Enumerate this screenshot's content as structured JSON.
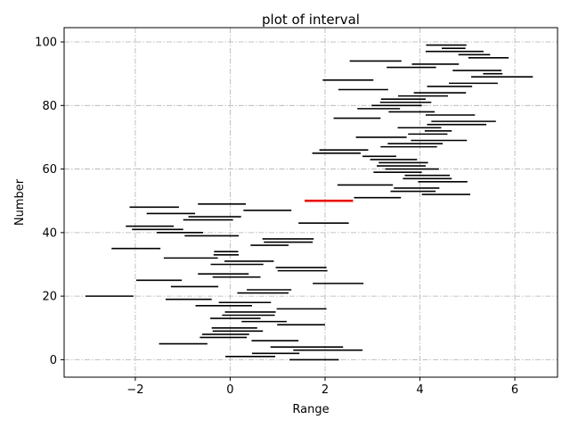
{
  "chart_data": {
    "type": "interval",
    "title": "plot of interval",
    "xlabel": "Range",
    "ylabel": "Number",
    "xlim": [
      -3.5,
      6.9
    ],
    "ylim": [
      -5.5,
      104.5
    ],
    "xticks": [
      -2,
      0,
      2,
      4,
      6
    ],
    "xtick_labels": [
      "−2",
      "0",
      "2",
      "4",
      "6"
    ],
    "yticks": [
      0,
      20,
      40,
      60,
      80,
      100
    ],
    "ytick_labels": [
      "0",
      "20",
      "40",
      "60",
      "80",
      "100"
    ],
    "grid": true,
    "colors": {
      "interval": "#000000",
      "highlight": "#e8140c",
      "grid": "#b0b0b0"
    },
    "highlight_index": 50,
    "intervals": [
      [
        1.25,
        2.29
      ],
      [
        -0.1,
        0.95
      ],
      [
        0.46,
        1.46
      ],
      [
        1.33,
        2.79
      ],
      [
        0.85,
        2.38
      ],
      [
        -1.5,
        -0.48
      ],
      [
        0.45,
        1.44
      ],
      [
        -0.64,
        0.35
      ],
      [
        -0.59,
        0.4
      ],
      [
        -0.37,
        0.69
      ],
      [
        -0.39,
        0.57
      ],
      [
        0.99,
        2.0
      ],
      [
        0.24,
        1.19
      ],
      [
        -0.42,
        0.64
      ],
      [
        -0.17,
        0.94
      ],
      [
        -0.11,
        0.96
      ],
      [
        0.98,
        2.03
      ],
      [
        -0.73,
        0.46
      ],
      [
        -0.24,
        0.86
      ],
      [
        -1.36,
        -0.39
      ],
      [
        -3.05,
        -2.04
      ],
      [
        0.15,
        1.23
      ],
      [
        0.35,
        1.29
      ],
      [
        -1.25,
        -0.25
      ],
      [
        1.74,
        2.81
      ],
      [
        -1.98,
        -1.02
      ],
      [
        -0.37,
        0.64
      ],
      [
        -0.68,
        0.39
      ],
      [
        1.0,
        2.05
      ],
      [
        0.96,
        2.03
      ],
      [
        -0.41,
        0.7
      ],
      [
        -0.12,
        0.92
      ],
      [
        -1.4,
        -0.26
      ],
      [
        -0.35,
        0.18
      ],
      [
        -0.34,
        0.17
      ],
      [
        -2.5,
        -1.47
      ],
      [
        0.43,
        1.23
      ],
      [
        0.71,
        1.74
      ],
      [
        0.68,
        1.76
      ],
      [
        -0.96,
        0.18
      ],
      [
        -1.55,
        -0.57
      ],
      [
        -2.07,
        -0.99
      ],
      [
        -2.2,
        -1.19
      ],
      [
        1.44,
        2.5
      ],
      [
        -0.99,
        0.06
      ],
      [
        -0.88,
        0.23
      ],
      [
        -1.76,
        -0.74
      ],
      [
        0.28,
        1.29
      ],
      [
        -2.12,
        -1.08
      ],
      [
        -0.68,
        0.33
      ],
      [
        1.57,
        2.59
      ],
      [
        2.61,
        3.6
      ],
      [
        4.04,
        5.06
      ],
      [
        3.38,
        4.33
      ],
      [
        3.45,
        4.41
      ],
      [
        2.26,
        3.43
      ],
      [
        3.96,
        5.0
      ],
      [
        3.64,
        4.67
      ],
      [
        3.68,
        4.63
      ],
      [
        3.02,
        4.04
      ],
      [
        3.27,
        4.4
      ],
      [
        3.09,
        4.12
      ],
      [
        3.13,
        4.17
      ],
      [
        2.95,
        3.94
      ],
      [
        2.79,
        3.5
      ],
      [
        1.73,
        2.75
      ],
      [
        1.88,
        2.91
      ],
      [
        3.17,
        4.36
      ],
      [
        3.32,
        4.48
      ],
      [
        3.81,
        4.99
      ],
      [
        2.65,
        3.72
      ],
      [
        3.75,
        4.58
      ],
      [
        4.1,
        4.67
      ],
      [
        3.53,
        4.45
      ],
      [
        4.15,
        5.4
      ],
      [
        4.24,
        5.6
      ],
      [
        2.18,
        3.17
      ],
      [
        4.12,
        5.16
      ],
      [
        3.34,
        4.31
      ],
      [
        2.68,
        3.58
      ],
      [
        2.98,
        4.04
      ],
      [
        3.16,
        4.24
      ],
      [
        3.18,
        4.12
      ],
      [
        3.54,
        4.59
      ],
      [
        3.87,
        4.97
      ],
      [
        2.28,
        3.33
      ],
      [
        4.15,
        5.1
      ],
      [
        4.61,
        5.64
      ],
      [
        1.95,
        3.02
      ],
      [
        5.08,
        6.38
      ],
      [
        5.33,
        5.74
      ],
      [
        4.69,
        5.72
      ],
      [
        3.3,
        4.34
      ],
      [
        3.83,
        4.82
      ],
      [
        2.52,
        3.61
      ],
      [
        5.02,
        5.87
      ],
      [
        4.81,
        5.48
      ],
      [
        4.12,
        5.34
      ],
      [
        4.46,
        4.96
      ],
      [
        4.13,
        4.98
      ]
    ]
  }
}
